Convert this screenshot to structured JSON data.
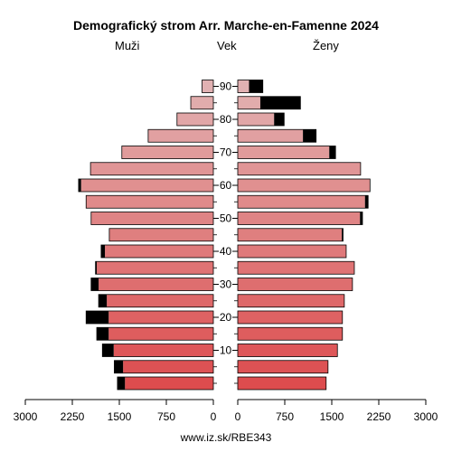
{
  "title": "Demografický strom Arr. Marche-en-Famenne 2024",
  "labels": {
    "male": "Muži",
    "age": "Vek",
    "female": "Ženy"
  },
  "footer": "www.iz.sk/RBE343",
  "colors": {
    "surplus": "#000000",
    "outline": "#000000"
  },
  "chart_data": {
    "type": "bar",
    "orientation": "horizontal",
    "title": "Demografický strom Arr. Marche-en-Famenne 2024",
    "age_groups": [
      "0-4",
      "5-9",
      "10-14",
      "15-19",
      "20-24",
      "25-29",
      "30-34",
      "35-39",
      "40-44",
      "45-49",
      "50-54",
      "55-59",
      "60-64",
      "65-69",
      "70-74",
      "75-79",
      "80-84",
      "85-89",
      "90-94"
    ],
    "age_ticks": [
      10,
      20,
      30,
      40,
      50,
      60,
      70,
      80,
      90
    ],
    "xlim": [
      3000,
      0,
      3000
    ],
    "x_ticks_left": [
      "3000",
      "2250",
      "1500",
      "750",
      "0"
    ],
    "x_ticks_right": [
      "0",
      "750",
      "1500",
      "2250",
      "3000"
    ],
    "series": [
      {
        "name": "Muži",
        "values": [
          1530,
          1580,
          1770,
          1860,
          2030,
          1830,
          1950,
          1880,
          1790,
          1660,
          1950,
          2030,
          2150,
          1960,
          1460,
          1040,
          580,
          360,
          180
        ]
      },
      {
        "name": "Ženy",
        "values": [
          1410,
          1440,
          1590,
          1670,
          1670,
          1700,
          1830,
          1860,
          1730,
          1680,
          1990,
          2080,
          2110,
          1960,
          1560,
          1250,
          740,
          1000,
          400
        ]
      }
    ],
    "bar_colors": [
      "#dd4c4e",
      "#dd5254",
      "#de5759",
      "#de5d5e",
      "#de6263",
      "#de6869",
      "#de6e6f",
      "#df7374",
      "#df797a",
      "#df7f7f",
      "#df8485",
      "#e08a8a",
      "#e09090",
      "#e09596",
      "#e09b9b",
      "#e1a0a1",
      "#e1a6a7",
      "#e1acac",
      "#e1b1b2",
      "#e1b7b7"
    ]
  }
}
